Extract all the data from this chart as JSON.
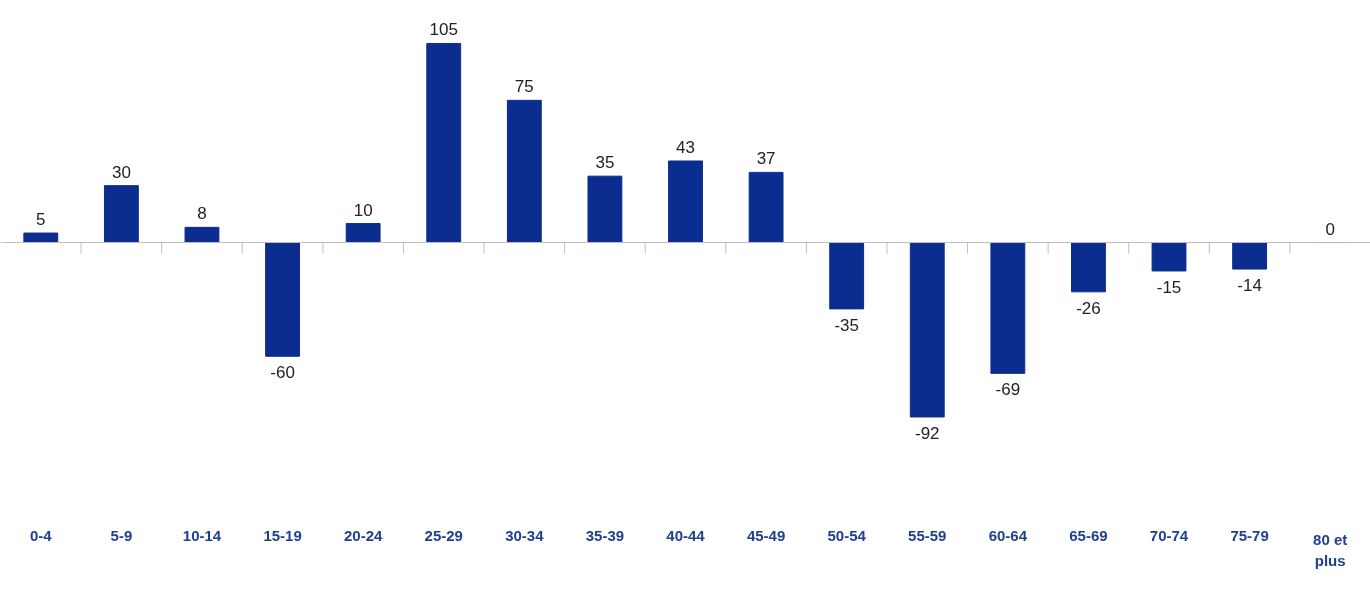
{
  "chart_data": {
    "type": "bar",
    "categories": [
      "0-4",
      "5-9",
      "10-14",
      "15-19",
      "20-24",
      "25-29",
      "30-34",
      "35-39",
      "40-44",
      "45-49",
      "50-54",
      "55-59",
      "60-64",
      "65-69",
      "70-74",
      "75-79",
      "80 et plus"
    ],
    "values": [
      5,
      30,
      8,
      -60,
      10,
      105,
      75,
      35,
      43,
      37,
      -35,
      -92,
      -69,
      -26,
      -15,
      -14,
      0
    ],
    "color": "#0b2d8f",
    "data_labels": true,
    "grid": false
  }
}
